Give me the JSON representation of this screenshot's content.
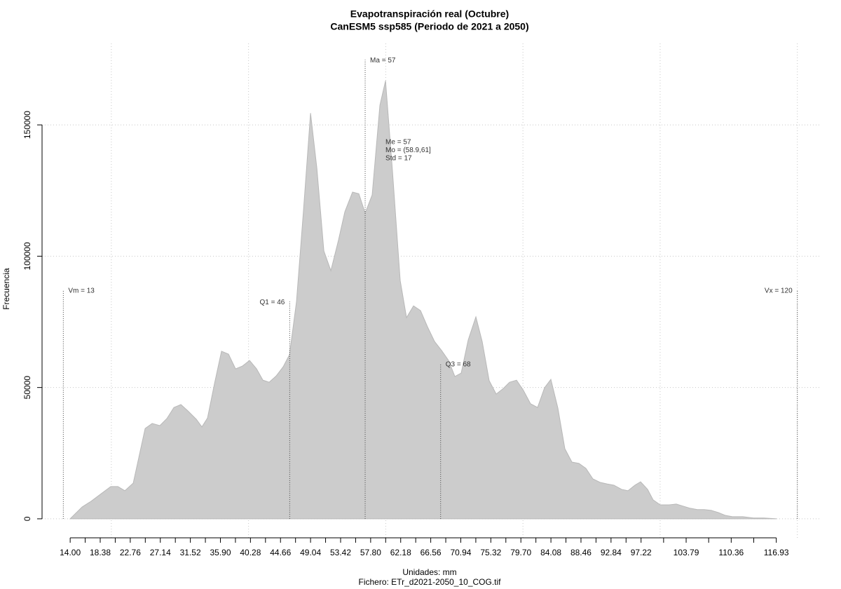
{
  "chart_data": {
    "type": "area",
    "title": "Evapotranspiración real (Octubre)",
    "subtitle": "CanESM5 ssp585 (Periodo de 2021 a 2050)",
    "ylabel": "Frecuencia",
    "xlabel": "Unidades: mm",
    "file_label": "Fichero: ETr_d2021-2050_10_COG.tif",
    "color": "#cccccc",
    "edge_color": "#b8b8b8",
    "x": [
      14.0,
      14.72,
      15.74,
      17.06,
      18.39,
      19.92,
      20.95,
      21.97,
      23.19,
      24.93,
      25.95,
      27.07,
      28.1,
      29.12,
      30.14,
      31.16,
      32.39,
      33.2,
      34.02,
      35.04,
      36.06,
      37.08,
      38.11,
      39.13,
      40.15,
      41.17,
      42.09,
      43.01,
      44.03,
      45.05,
      45.97,
      46.99,
      48.01,
      49.04,
      49.96,
      50.98,
      52.0,
      53.12,
      54.04,
      55.16,
      56.08,
      57.0,
      58.02,
      59.15,
      59.97,
      60.99,
      62.11,
      63.03,
      64.05,
      65.07,
      66.09,
      67.12,
      68.14,
      69.16,
      70.08,
      71.0,
      72.02,
      73.14,
      74.06,
      75.08,
      76.1,
      77.13,
      78.04,
      79.07,
      80.09,
      81.11,
      82.13,
      83.15,
      84.07,
      85.09,
      86.11,
      87.14,
      88.16,
      89.18,
      90.2,
      91.22,
      92.24,
      93.26,
      94.39,
      95.31,
      96.33,
      97.15,
      98.17,
      98.98,
      100.01,
      101.33,
      102.36,
      103.38,
      104.4,
      105.42,
      106.44,
      107.46,
      108.48,
      109.51,
      110.53,
      112.06,
      113.59,
      115.12,
      116.96
    ],
    "values": [
      0,
      1900,
      4500,
      6700,
      9300,
      12300,
      12300,
      10700,
      13600,
      34400,
      36300,
      35500,
      38200,
      42400,
      43500,
      41100,
      37900,
      35000,
      38400,
      51500,
      63800,
      62700,
      57100,
      58200,
      60300,
      57100,
      52800,
      52000,
      54400,
      57900,
      62500,
      82700,
      117400,
      154500,
      133500,
      102000,
      94500,
      106200,
      116900,
      124400,
      123800,
      116400,
      123300,
      157500,
      166800,
      132100,
      90700,
      76600,
      81100,
      79300,
      73100,
      67500,
      64100,
      60300,
      54200,
      55500,
      68100,
      76900,
      67500,
      52600,
      47500,
      49600,
      52000,
      52800,
      48800,
      43800,
      42400,
      49900,
      53100,
      42200,
      26700,
      21600,
      21100,
      19200,
      15200,
      13900,
      13300,
      12800,
      11200,
      10700,
      12800,
      14100,
      11200,
      7200,
      5300,
      5300,
      5600,
      4800,
      4000,
      3500,
      3500,
      3200,
      2400,
      1300,
      800,
      800,
      300,
      300,
      0
    ],
    "xlim": [
      9.9,
      123.3
    ],
    "ylim": [
      -7500,
      181000
    ],
    "xticks": [
      {
        "value": 14,
        "label": "14.00"
      },
      18.38,
      22.76,
      27.14,
      31.52,
      {
        "value": 35.9,
        "label": "35.90"
      },
      40.28,
      44.66,
      49.04,
      53.42,
      {
        "value": 57.8,
        "label": "57.80"
      },
      62.18,
      66.56,
      70.94,
      75.32,
      {
        "value": 79.7,
        "label": "79.70"
      },
      84.08,
      88.46,
      92.84,
      97.22,
      103.79,
      110.36,
      116.93
    ],
    "yticks": [
      0,
      50000,
      100000,
      150000
    ],
    "xgrid": [
      20,
      40,
      60,
      80,
      100,
      120
    ],
    "grid": true,
    "stat_lines": [
      {
        "label": "Vm = 13",
        "value": 13,
        "height": 87000
      },
      {
        "label": "Q1 = 46",
        "value": 46,
        "height": 82700
      },
      {
        "label": "Ma = 57",
        "value": 57,
        "height": 174800
      },
      {
        "label": "Q3 = 68",
        "value": 68,
        "height": 59000
      },
      {
        "label": "Vx = 120",
        "value": 120,
        "height": 87000
      }
    ],
    "stats_text": [
      "Me = 57",
      "Mo = (58.9,61]",
      "Std = 17"
    ]
  }
}
